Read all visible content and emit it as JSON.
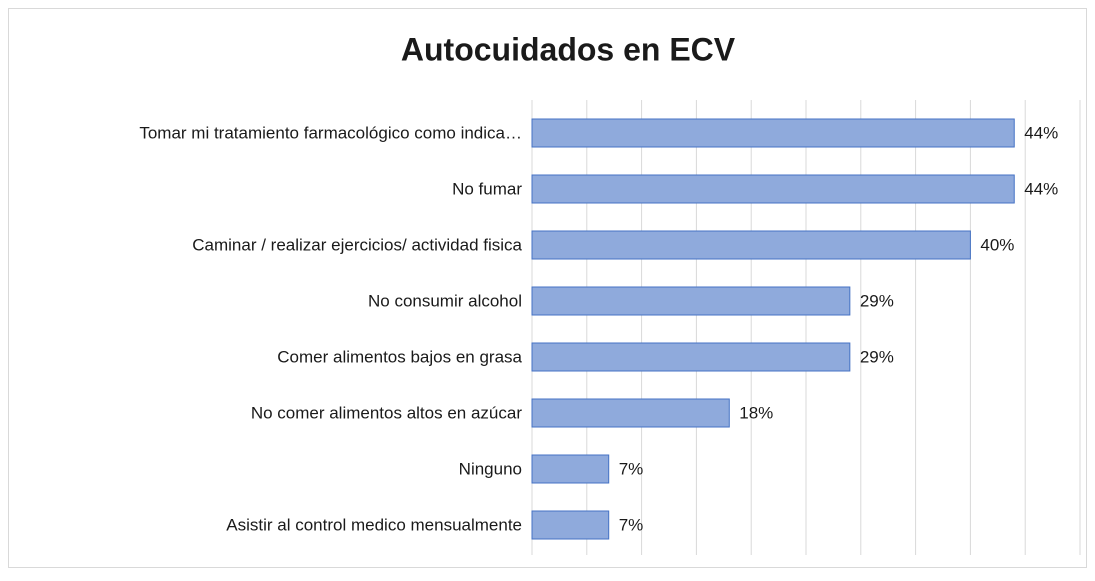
{
  "chart_data": {
    "type": "barh",
    "title": "Autocuidados en ECV",
    "categories": [
      "Tomar mi tratamiento farmacológico como indica…",
      "No fumar",
      "Caminar / realizar ejercicios/ actividad fisica",
      "No consumir alcohol",
      "Comer alimentos bajos en grasa",
      "No comer alimentos altos en  azúcar",
      "Ninguno",
      "Asistir al control medico mensualmente"
    ],
    "values": [
      44,
      44,
      40,
      29,
      29,
      18,
      7,
      7
    ],
    "value_labels": [
      "44%",
      "44%",
      "40%",
      "29%",
      "29%",
      "18%",
      "7%",
      "7%"
    ],
    "color": "#8faadc",
    "edge_color": "#4472c4",
    "xlim": [
      0,
      50
    ],
    "xticks": [
      0,
      5,
      10,
      15,
      20,
      25,
      30,
      35,
      40,
      45,
      50
    ],
    "grid": true
  }
}
